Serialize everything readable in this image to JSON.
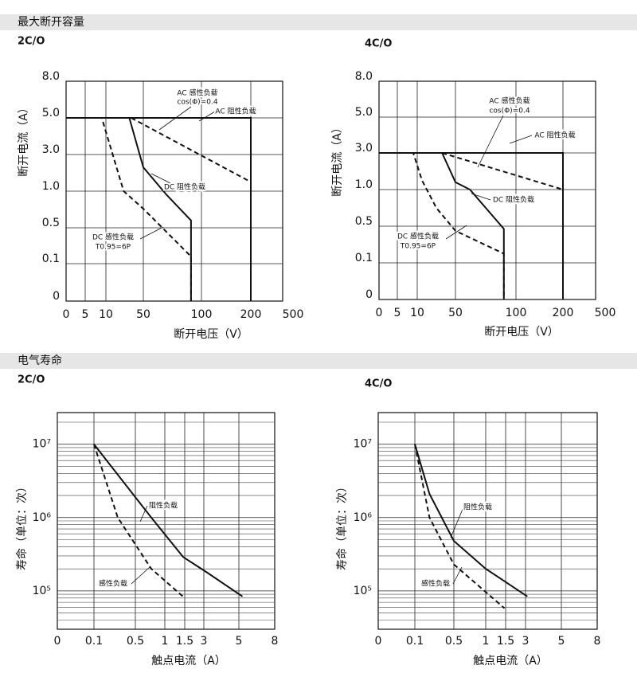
{
  "sections": [
    {
      "title": "最大断开容量"
    },
    {
      "title": "电气寿命"
    }
  ],
  "chart_data": [
    {
      "type": "line",
      "title": "2C/O",
      "x_label": "断开电压（V）",
      "y_label": "断开电流（A）",
      "xlim": [
        0,
        500
      ],
      "ylim": [
        0,
        8
      ],
      "xticks": [
        0,
        5,
        10,
        50,
        100,
        200,
        500
      ],
      "yticks": [
        0,
        0.1,
        0.5,
        {
          "value": 1,
          "label": "1.0"
        },
        {
          "value": 3,
          "label": "3.0"
        },
        {
          "value": 5,
          "label": "5.0"
        },
        {
          "value": 8,
          "label": "8.0"
        }
      ],
      "grid": true,
      "series": [
        {
          "color": "#111111",
          "linestyle": "solid",
          "x": [
            0,
            200,
            200
          ],
          "values": [
            5,
            5,
            0
          ]
        },
        {
          "color": "#111111",
          "linestyle": "dashed",
          "x": [
            37,
            200
          ],
          "values": [
            5,
            1.5
          ]
        },
        {
          "color": "#111111",
          "linestyle": "solid",
          "x": [
            35,
            50,
            70,
            91,
            91
          ],
          "values": [
            5,
            2.3,
            0.95,
            0.6,
            0
          ]
        },
        {
          "color": "#111111",
          "linestyle": "dashed",
          "x": [
            0,
            9,
            29,
            50,
            91,
            91
          ],
          "values": [
            5,
            5,
            1.0,
            0.76,
            0.18,
            0
          ]
        }
      ],
      "annotations": [
        "AC 感性负载",
        "cos(Φ)=0.4",
        "AC 阻性负载",
        "DC 阻性负载",
        "DC 感性负载",
        "T0.95=6P"
      ]
    },
    {
      "type": "line",
      "title": "4C/O",
      "x_label": "断开电压（V）",
      "y_label": "断开电流（A）",
      "xlim": [
        0,
        500
      ],
      "ylim": [
        0,
        8
      ],
      "xticks": [
        0,
        5,
        10,
        50,
        100,
        200,
        500
      ],
      "yticks": [
        0,
        0.1,
        0.5,
        {
          "value": 1,
          "label": "1.0"
        },
        {
          "value": 3,
          "label": "3.0"
        },
        {
          "value": 5,
          "label": "5.0"
        },
        {
          "value": 8,
          "label": "8.0"
        }
      ],
      "grid": true,
      "series": [
        {
          "color": "#111111",
          "linestyle": "solid",
          "x": [
            0,
            200,
            200
          ],
          "values": [
            3,
            3,
            0
          ]
        },
        {
          "color": "#111111",
          "linestyle": "dashed",
          "x": [
            36,
            200
          ],
          "values": [
            3,
            1.0
          ]
        },
        {
          "color": "#111111",
          "linestyle": "solid",
          "x": [
            36,
            50,
            62,
            90,
            90
          ],
          "values": [
            3,
            1.4,
            1.0,
            0.47,
            0
          ]
        },
        {
          "color": "#111111",
          "linestyle": "dashed",
          "x": [
            0,
            9,
            15,
            30,
            50,
            90,
            90
          ],
          "values": [
            3,
            3,
            1.5,
            0.75,
            0.45,
            0.2,
            0
          ]
        }
      ],
      "annotations": [
        "AC 感性负载",
        "cos(Φ)=0.4",
        "AC 阻性负载",
        "DC 阻性负载",
        "DC 感性负载",
        "T0.95=6P"
      ]
    },
    {
      "type": "line",
      "title": "2C/O",
      "x_label": "触点电流（A）",
      "y_label": "寿命（单位：次）",
      "xlim": [
        0,
        8
      ],
      "ylim": [
        30000,
        27000000
      ],
      "ylog": true,
      "xticks": [
        0,
        0.1,
        0.5,
        1,
        1.5,
        3,
        5,
        8
      ],
      "yticks": [
        {
          "value": 100000,
          "label": "10⁵"
        },
        {
          "value": 1000000,
          "label": "10⁶"
        },
        {
          "value": 10000000,
          "label": "10⁷"
        }
      ],
      "grid": true,
      "series": [
        {
          "color": "#111111",
          "linestyle": "solid",
          "x": [
            0.1,
            0.77,
            1.46,
            3.2,
            5.3
          ],
          "values": [
            10000000,
            1000000,
            290000,
            177000,
            84000
          ]
        },
        {
          "color": "#111111",
          "linestyle": "dashed",
          "x": [
            0.1,
            0.33,
            0.77,
            1.5
          ],
          "values": [
            10000000,
            1000000,
            200000,
            80000
          ]
        }
      ],
      "annotations": [
        "阻性负载",
        "感性负载"
      ]
    },
    {
      "type": "line",
      "title": "4C/O",
      "x_label": "触点电流（A）",
      "y_label": "寿命（单位：次）",
      "xlim": [
        0,
        8
      ],
      "ylim": [
        30000,
        27000000
      ],
      "ylog": true,
      "xticks": [
        0,
        0.1,
        0.5,
        1,
        1.5,
        3,
        5,
        8
      ],
      "yticks": [
        {
          "value": 100000,
          "label": "10⁵"
        },
        {
          "value": 1000000,
          "label": "10⁶"
        },
        {
          "value": 10000000,
          "label": "10⁷"
        }
      ],
      "grid": true,
      "series": [
        {
          "color": "#111111",
          "linestyle": "solid",
          "x": [
            0.1,
            0.25,
            0.5,
            1.0,
            3.1
          ],
          "values": [
            10000000,
            2100000,
            480000,
            200000,
            84000
          ]
        },
        {
          "color": "#111111",
          "linestyle": "dashed",
          "x": [
            0.1,
            0.25,
            0.5,
            1.47
          ],
          "values": [
            10000000,
            1000000,
            230000,
            58000
          ]
        }
      ],
      "annotations": [
        "阻性负载",
        "感性负载"
      ]
    }
  ]
}
